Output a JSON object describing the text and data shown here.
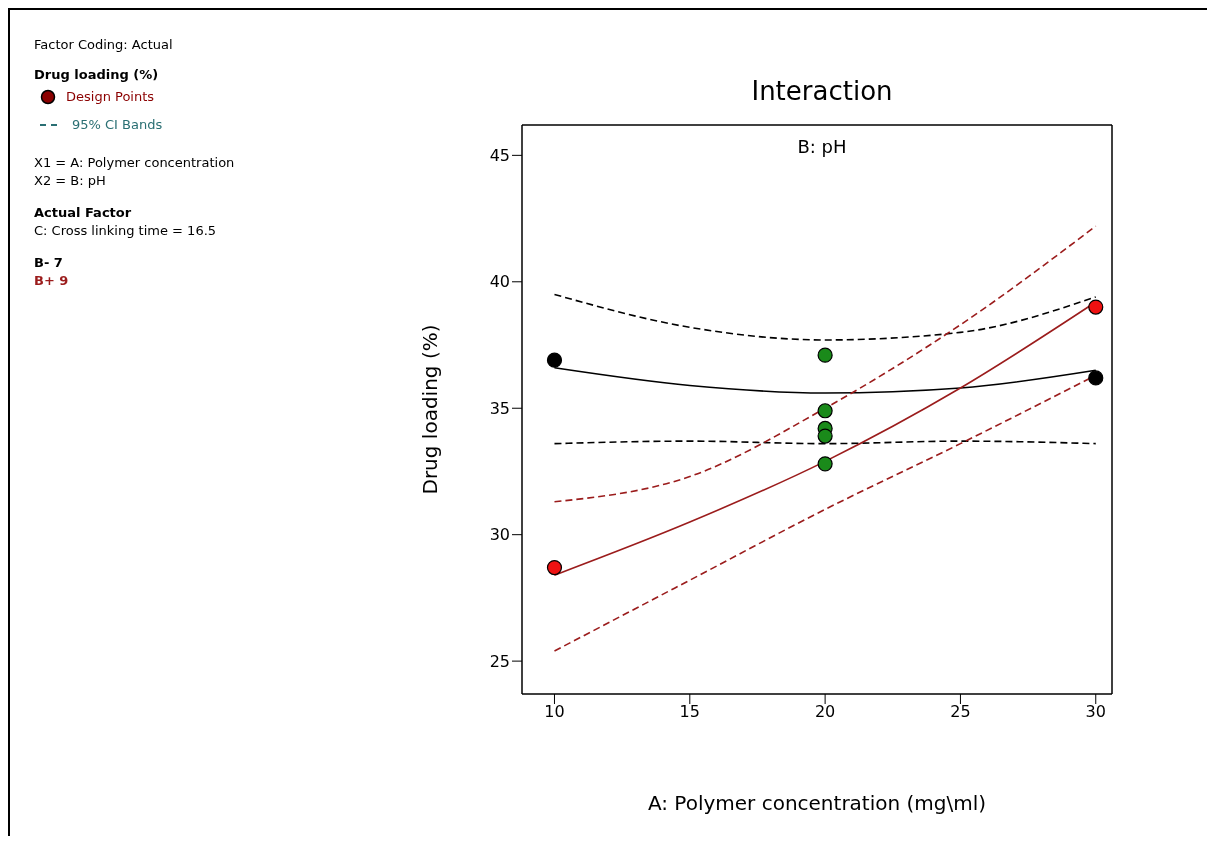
{
  "chart_data": {
    "type": "line",
    "title": "Interaction",
    "subtitle": "B: pH",
    "xlabel": "A: Polymer concentration (mg\\ml)",
    "ylabel": "Drug loading (%)",
    "legend_title": "Drug loading (%)",
    "legend": "left",
    "annotations": [
      "Factor Coding: Actual",
      "Design Points",
      "95% CI Bands",
      "X1 = A: Polymer concentration",
      "X2 = B: pH",
      "Actual Factor",
      "C: Cross linking time = 16.5"
    ],
    "xlim": [
      8.8,
      30.6
    ],
    "xticks": [
      10,
      15,
      20,
      25,
      30
    ],
    "ylim": [
      23.7,
      46.2
    ],
    "yticks": [
      25,
      30,
      35,
      40,
      45
    ],
    "marker": "none",
    "series": [
      {
        "name": "B- 7",
        "color": "#000000",
        "line_style": "solid",
        "x": [
          10,
          15,
          20,
          25,
          30
        ],
        "values": [
          36.6,
          35.9,
          35.6,
          35.8,
          36.5
        ]
      },
      {
        "type": "line",
        "color": "#000000",
        "line_style": "dashed",
        "x": [
          10,
          15,
          20,
          25,
          30
        ],
        "values": [
          39.5,
          38.2,
          37.7,
          38.0,
          39.4
        ]
      },
      {
        "type": "line",
        "color": "#000000",
        "line_style": "dashed",
        "x": [
          10,
          15,
          20,
          25,
          30
        ],
        "values": [
          33.6,
          33.7,
          33.6,
          33.7,
          33.6
        ]
      },
      {
        "name": "B+ 9",
        "color": "#9b1c1c",
        "line_style": "solid",
        "x": [
          10,
          15,
          20,
          25,
          30
        ],
        "values": [
          28.4,
          30.5,
          32.9,
          35.8,
          39.2
        ]
      },
      {
        "type": "line",
        "color": "#9b1c1c",
        "line_style": "dashed",
        "x": [
          10,
          15,
          20,
          25,
          30
        ],
        "values": [
          31.3,
          32.3,
          35.0,
          38.3,
          42.2
        ]
      },
      {
        "type": "line",
        "color": "#9b1c1c",
        "line_style": "dashed",
        "x": [
          10,
          15,
          20,
          25,
          30
        ],
        "values": [
          25.4,
          28.2,
          31.0,
          33.6,
          36.3
        ]
      },
      {
        "type": "scatter",
        "marker": "circle",
        "x": [
          10,
          30,
          10,
          30,
          20,
          20,
          20,
          20,
          20
        ],
        "values": [
          36.9,
          36.2,
          28.7,
          39.0,
          37.1,
          34.9,
          34.2,
          33.9,
          32.8
        ],
        "colors": [
          "#000000",
          "#000000",
          "#ee1111",
          "#ee1111",
          "#1a8a1a",
          "#1a8a1a",
          "#1a8a1a",
          "#1a8a1a",
          "#1a8a1a"
        ]
      }
    ]
  }
}
